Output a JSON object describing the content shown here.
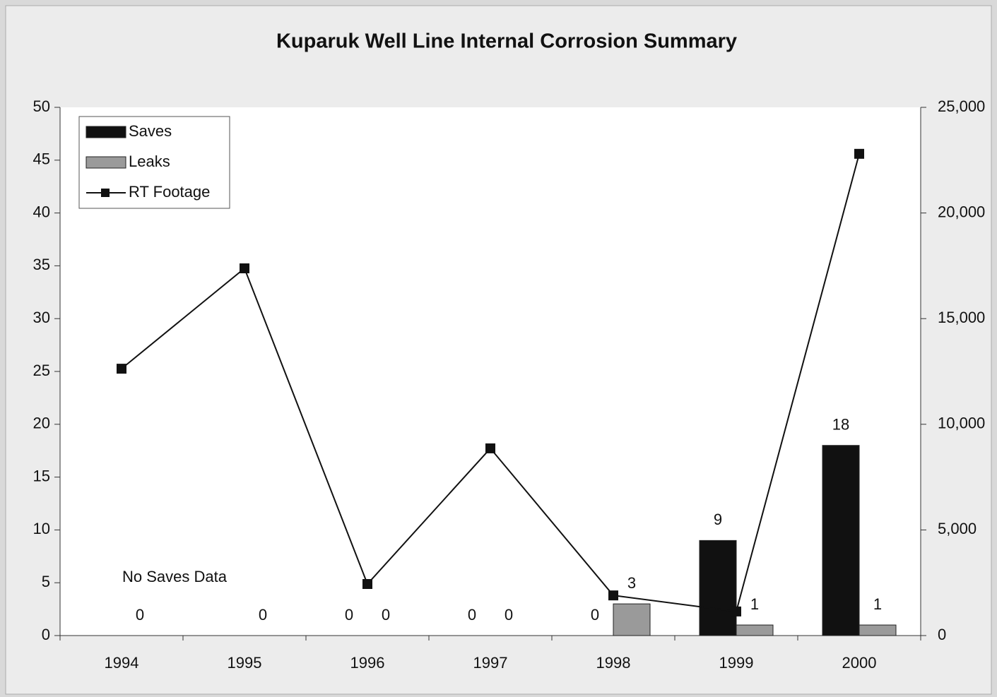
{
  "chart_data": {
    "type": "bar",
    "title": "Kuparuk Well Line Internal Corrosion Summary",
    "categories": [
      "1994",
      "1995",
      "1996",
      "1997",
      "1998",
      "1999",
      "2000"
    ],
    "series": [
      {
        "name": "Saves",
        "color": "#111111",
        "values": [
          null,
          null,
          0,
          0,
          0,
          9,
          18
        ]
      },
      {
        "name": "Leaks",
        "color": "#9a9a9a",
        "values": [
          0,
          0,
          0,
          0,
          3,
          1,
          1
        ]
      },
      {
        "name": "RT Footage",
        "color": "#111111",
        "type": "line",
        "axis": "y2",
        "values": [
          12630,
          17380,
          2440,
          8860,
          1900,
          1140,
          22800
        ]
      }
    ],
    "annotations": [
      "No Saves Data"
    ],
    "ylim": [
      0,
      50
    ],
    "yticks": [
      0,
      5,
      10,
      15,
      20,
      25,
      30,
      35,
      40,
      45,
      50
    ],
    "y2lim": [
      0,
      25000
    ],
    "y2ticks": [
      0,
      {
        "value": 5000,
        "label": "5,000"
      },
      {
        "value": 10000,
        "label": "10,000"
      },
      {
        "value": 15000,
        "label": "15,000"
      },
      {
        "value": 20000,
        "label": "20,000"
      },
      {
        "value": 25000,
        "label": "25,000"
      }
    ],
    "legend": "upper left"
  }
}
